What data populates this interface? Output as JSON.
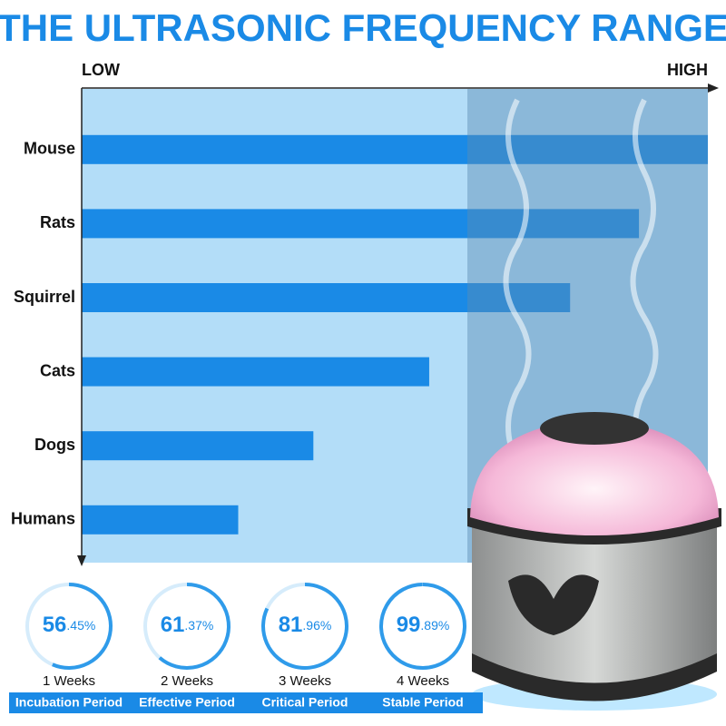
{
  "chart_data": {
    "type": "bar",
    "orientation": "horizontal",
    "title": "THE ULTRASONIC FREQUENCY RANGE",
    "x_low_label": "LOW",
    "x_high_label": "HIGH",
    "categories": [
      "Mouse",
      "Rats",
      "Squirrel",
      "Cats",
      "Dogs",
      "Humans"
    ],
    "values": [
      100,
      89,
      78,
      55.5,
      37,
      25
    ],
    "xlim": [
      0,
      100
    ],
    "color": "#1a8ae6"
  },
  "stages": [
    {
      "value": 56.45,
      "value_label": "56.45%",
      "weeks": "1 Weeks",
      "period": "Incubation Period"
    },
    {
      "value": 61.37,
      "value_label": "61.37%",
      "weeks": "2 Weeks",
      "period": "Effective Period"
    },
    {
      "value": 81.96,
      "value_label": "81.96%",
      "weeks": "3 Weeks",
      "period": "Critical Period"
    },
    {
      "value": 99.89,
      "value_label": "99.89%",
      "weeks": "4 Weeks",
      "period": "Stable Period"
    }
  ]
}
